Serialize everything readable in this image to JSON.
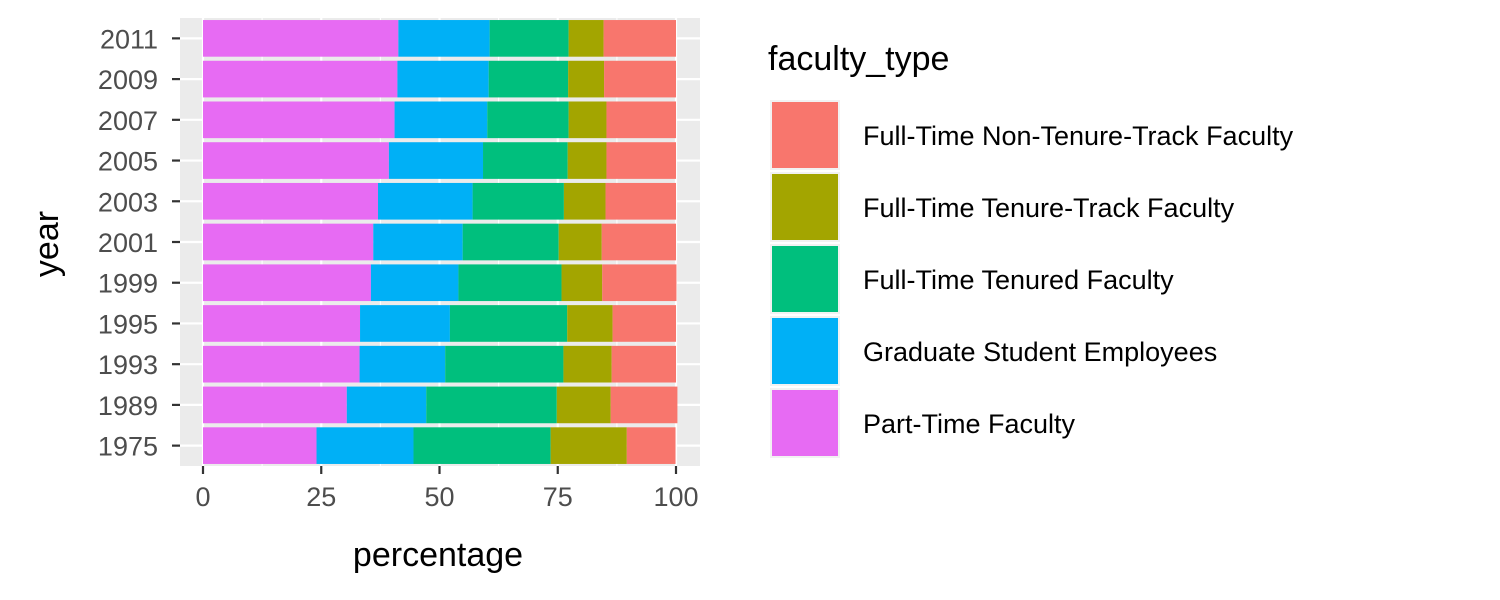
{
  "chart_data": {
    "type": "bar",
    "orientation": "horizontal",
    "stacked": true,
    "xlabel": "percentage",
    "ylabel": "year",
    "xlim": [
      0,
      100
    ],
    "x_ticks": [
      0,
      25,
      50,
      75,
      100
    ],
    "grid": true,
    "legend_title": "faculty_type",
    "legend_position": "right",
    "categories": [
      "1975",
      "1989",
      "1993",
      "1995",
      "1999",
      "2001",
      "2003",
      "2005",
      "2007",
      "2009",
      "2011"
    ],
    "series": [
      {
        "name": "Part-Time Faculty",
        "color": "#E76BF3",
        "values": [
          24.0,
          30.4,
          33.1,
          33.2,
          35.5,
          36.0,
          37.0,
          39.3,
          40.5,
          41.1,
          41.3
        ]
      },
      {
        "name": "Graduate Student Employees",
        "color": "#00B0F6",
        "values": [
          20.5,
          16.8,
          18.1,
          19.0,
          18.5,
          18.9,
          20.0,
          19.9,
          19.6,
          19.3,
          19.3
        ]
      },
      {
        "name": "Full-Time Tenured Faculty",
        "color": "#00BF7D",
        "values": [
          29.0,
          27.6,
          25.0,
          24.8,
          21.8,
          20.3,
          19.3,
          17.9,
          17.2,
          16.8,
          16.7
        ]
      },
      {
        "name": "Full-Time Tenure-Track Faculty",
        "color": "#A3A500",
        "values": [
          16.1,
          11.4,
          10.2,
          9.6,
          8.6,
          9.1,
          8.8,
          8.2,
          8.0,
          7.6,
          7.4
        ]
      },
      {
        "name": "Full-Time Non-Tenure-Track Faculty",
        "color": "#F8766D",
        "values": [
          10.3,
          14.1,
          13.6,
          13.4,
          15.7,
          15.7,
          14.9,
          14.7,
          14.7,
          15.2,
          15.3
        ]
      }
    ],
    "legend_order": [
      "Full-Time Non-Tenure-Track Faculty",
      "Full-Time Tenure-Track Faculty",
      "Full-Time Tenured Faculty",
      "Graduate Student Employees",
      "Part-Time Faculty"
    ],
    "colors": {
      "panel": "#EBEBEB",
      "grid": "#FFFFFF",
      "tick": "#333333"
    }
  }
}
